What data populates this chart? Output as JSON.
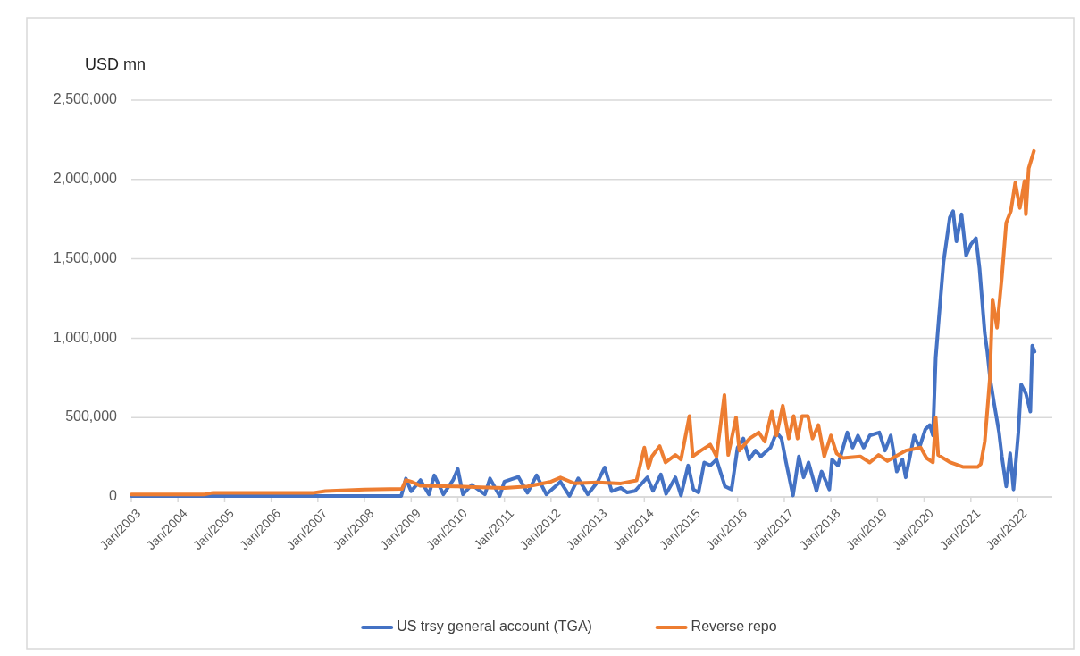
{
  "chart_data": {
    "type": "line",
    "ylabel": "USD mn",
    "legend": "bottom",
    "grid": "y",
    "line_style": "solid",
    "marker": "none",
    "xlim": [
      "2003-01-01",
      "2022-10-01"
    ],
    "xticks": [
      {
        "value": "2003-01-01",
        "label": "Jan/2003"
      },
      {
        "value": "2004-01-01",
        "label": "Jan/2004"
      },
      {
        "value": "2005-01-01",
        "label": "Jan/2005"
      },
      {
        "value": "2006-01-01",
        "label": "Jan/2006"
      },
      {
        "value": "2007-01-01",
        "label": "Jan/2007"
      },
      {
        "value": "2008-01-01",
        "label": "Jan/2008"
      },
      {
        "value": "2009-01-01",
        "label": "Jan/2009"
      },
      {
        "value": "2010-01-01",
        "label": "Jan/2010"
      },
      {
        "value": "2011-01-01",
        "label": "Jan/2011"
      },
      {
        "value": "2012-01-01",
        "label": "Jan/2012"
      },
      {
        "value": "2013-01-01",
        "label": "Jan/2013"
      },
      {
        "value": "2014-01-01",
        "label": "Jan/2014"
      },
      {
        "value": "2015-01-01",
        "label": "Jan/2015"
      },
      {
        "value": "2016-01-01",
        "label": "Jan/2016"
      },
      {
        "value": "2017-01-01",
        "label": "Jan/2017"
      },
      {
        "value": "2018-01-01",
        "label": "Jan/2018"
      },
      {
        "value": "2019-01-01",
        "label": "Jan/2019"
      },
      {
        "value": "2020-01-01",
        "label": "Jan/2020"
      },
      {
        "value": "2021-01-01",
        "label": "Jan/2021"
      },
      {
        "value": "2022-01-01",
        "label": "Jan/2022"
      }
    ],
    "ylim": [
      0,
      2500000
    ],
    "yticks": [
      0,
      {
        "value": 500000,
        "label": "500,000"
      },
      {
        "value": 1000000,
        "label": "1,000,000"
      },
      {
        "value": 1500000,
        "label": "1,500,000"
      },
      {
        "value": 2000000,
        "label": "2,000,000"
      },
      {
        "value": 2500000,
        "label": "2,500,000"
      }
    ],
    "series": [
      {
        "name": "US trsy general account (TGA)",
        "color": "#4472c4",
        "x": [
          "2003-01-01",
          "2008-10-15",
          "2008-11-20",
          "2009-01-01",
          "2009-03-15",
          "2009-05-20",
          "2009-07-01",
          "2009-09-10",
          "2009-11-25",
          "2010-01-01",
          "2010-02-10",
          "2010-04-20",
          "2010-08-01",
          "2010-09-10",
          "2010-11-25",
          "2011-01-01",
          "2011-04-20",
          "2011-07-01",
          "2011-09-10",
          "2011-11-25",
          "2012-03-15",
          "2012-05-25",
          "2012-08-01",
          "2012-10-15",
          "2013-01-01",
          "2013-02-25",
          "2013-04-20",
          "2013-07-01",
          "2013-08-20",
          "2013-10-20",
          "2014-01-25",
          "2014-03-10",
          "2014-05-10",
          "2014-06-20",
          "2014-09-01",
          "2014-10-15",
          "2014-12-10",
          "2015-01-20",
          "2015-03-01",
          "2015-04-15",
          "2015-06-01",
          "2015-07-20",
          "2015-09-25",
          "2015-11-15",
          "2016-01-01",
          "2016-02-15",
          "2016-04-01",
          "2016-05-20",
          "2016-07-01",
          "2016-09-15",
          "2016-11-01",
          "2016-12-10",
          "2017-01-15",
          "2017-03-10",
          "2017-04-25",
          "2017-06-01",
          "2017-07-10",
          "2017-09-10",
          "2017-10-20",
          "2017-12-20",
          "2018-01-10",
          "2018-02-25",
          "2018-05-10",
          "2018-06-20",
          "2018-08-01",
          "2018-09-15",
          "2018-11-01",
          "2019-01-15",
          "2019-03-01",
          "2019-04-15",
          "2019-06-01",
          "2019-07-15",
          "2019-08-10",
          "2019-10-15",
          "2019-11-25",
          "2020-01-10",
          "2020-02-15",
          "2020-03-10",
          "2020-04-01",
          "2020-04-25",
          "2020-06-01",
          "2020-07-20",
          "2020-08-15",
          "2020-09-10",
          "2020-10-20",
          "2020-11-25",
          "2021-01-01",
          "2021-02-10",
          "2021-03-10",
          "2021-04-20",
          "2021-05-10",
          "2021-06-01",
          "2021-07-01",
          "2021-08-10",
          "2021-09-01",
          "2021-10-05",
          "2021-11-05",
          "2021-12-01",
          "2022-01-08",
          "2022-01-30",
          "2022-03-08",
          "2022-04-12",
          "2022-04-27",
          "2022-05-15"
        ],
        "values": [
          5000,
          5000,
          116000,
          36000,
          106000,
          16000,
          136000,
          16000,
          106000,
          176000,
          16000,
          76000,
          16000,
          116000,
          6000,
          96000,
          126000,
          26000,
          136000,
          16000,
          96000,
          6000,
          116000,
          16000,
          96000,
          186000,
          36000,
          57000,
          28000,
          38000,
          123000,
          38000,
          142000,
          19000,
          123000,
          9000,
          198000,
          47000,
          28000,
          217000,
          198000,
          236000,
          66000,
          47000,
          311000,
          368000,
          236000,
          292000,
          255000,
          311000,
          406000,
          368000,
          217000,
          9000,
          255000,
          123000,
          217000,
          38000,
          160000,
          47000,
          236000,
          198000,
          406000,
          311000,
          387000,
          311000,
          387000,
          406000,
          292000,
          387000,
          160000,
          236000,
          123000,
          387000,
          311000,
          425000,
          453000,
          387000,
          877000,
          1120000,
          1480000,
          1760000,
          1800000,
          1610000,
          1780000,
          1520000,
          1590000,
          1630000,
          1440000,
          1030000,
          915000,
          745000,
          594000,
          406000,
          255000,
          66000,
          274000,
          47000,
          406000,
          708000,
          651000,
          538000,
          953000,
          915000
        ]
      },
      {
        "name": "Reverse repo",
        "color": "#ed7d31",
        "x": [
          "2003-01-01",
          "2004-08-01",
          "2004-10-01",
          "2006-12-01",
          "2007-03-01",
          "2008-01-01",
          "2008-10-20",
          "2008-11-20",
          "2009-01-01",
          "2009-03-15",
          "2010-01-01",
          "2010-07-01",
          "2011-01-01",
          "2011-07-01",
          "2012-01-01",
          "2012-03-15",
          "2012-07-01",
          "2013-01-01",
          "2013-07-01",
          "2013-11-01",
          "2014-01-01",
          "2014-02-01",
          "2014-03-01",
          "2014-05-01",
          "2014-06-15",
          "2014-09-01",
          "2014-10-15",
          "2014-12-20",
          "2015-01-15",
          "2015-03-20",
          "2015-06-01",
          "2015-07-20",
          "2015-09-20",
          "2015-10-20",
          "2015-12-20",
          "2016-01-15",
          "2016-04-05",
          "2016-06-15",
          "2016-08-01",
          "2016-09-25",
          "2016-11-01",
          "2016-12-20",
          "2017-02-05",
          "2017-03-15",
          "2017-04-15",
          "2017-05-20",
          "2017-07-05",
          "2017-08-10",
          "2017-09-25",
          "2017-11-10",
          "2018-01-01",
          "2018-02-15",
          "2018-04-05",
          "2018-08-20",
          "2018-11-01",
          "2019-01-10",
          "2019-03-20",
          "2019-08-10",
          "2019-12-05",
          "2020-01-20",
          "2020-03-10",
          "2020-04-01",
          "2020-04-20",
          "2020-07-25",
          "2020-10-30",
          "2021-02-25",
          "2021-03-20",
          "2021-04-20",
          "2021-05-30",
          "2021-06-20",
          "2021-07-25",
          "2021-09-01",
          "2021-10-05",
          "2021-11-10",
          "2021-12-15",
          "2022-01-20",
          "2022-02-25",
          "2022-03-08",
          "2022-03-30",
          "2022-05-10"
        ],
        "values": [
          16000,
          16000,
          26000,
          26000,
          36000,
          46000,
          50000,
          106000,
          96000,
          70000,
          66000,
          60000,
          56000,
          66000,
          96000,
          122000,
          86000,
          92000,
          85000,
          104000,
          311000,
          180000,
          255000,
          320000,
          217000,
          264000,
          236000,
          510000,
          255000,
          292000,
          330000,
          255000,
          642000,
          264000,
          500000,
          292000,
          368000,
          406000,
          349000,
          538000,
          387000,
          575000,
          368000,
          510000,
          368000,
          510000,
          510000,
          368000,
          453000,
          255000,
          387000,
          274000,
          245000,
          255000,
          217000,
          264000,
          226000,
          292000,
          311000,
          245000,
          217000,
          500000,
          264000,
          217000,
          189000,
          189000,
          208000,
          349000,
          745000,
          1245000,
          1066000,
          1387000,
          1727000,
          1800000,
          1980000,
          1820000,
          1990000,
          1780000,
          2070000,
          2180000
        ]
      }
    ]
  }
}
